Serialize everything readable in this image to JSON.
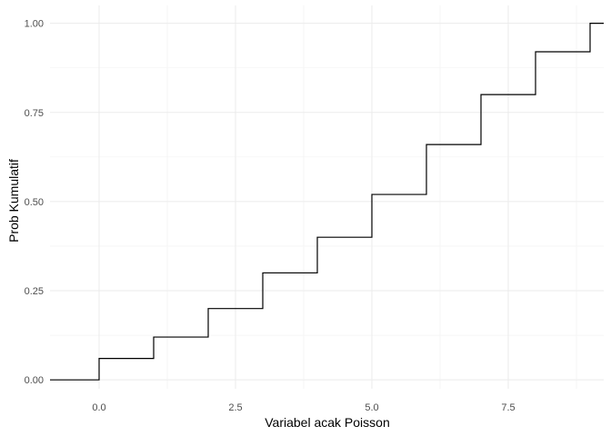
{
  "chart_data": {
    "type": "line",
    "subtype": "step",
    "title": "",
    "xlabel": "Variabel acak Poisson",
    "ylabel": "Prob Kumulatif",
    "xlim": [
      -0.9,
      9.25
    ],
    "ylim": [
      -0.025,
      1.05
    ],
    "x_ticks": [
      0,
      2.5,
      5,
      7.5
    ],
    "x_tick_labels": [
      "0.0",
      "2.5",
      "5.0",
      "7.5"
    ],
    "x_minor_ticks": [
      1.25,
      3.75,
      6.25,
      8.75
    ],
    "y_ticks": [
      0,
      0.25,
      0.5,
      0.75,
      1
    ],
    "y_tick_labels": [
      "0.00",
      "0.25",
      "0.50",
      "0.75",
      "1.00"
    ],
    "y_minor_ticks": [
      0.125,
      0.375,
      0.625,
      0.875
    ],
    "grid": true,
    "legend": "none",
    "line_color": "#000000",
    "series": [
      {
        "x": [
          0,
          1,
          2,
          3,
          4,
          5,
          6,
          7,
          8,
          9
        ],
        "y": [
          0.06,
          0.12,
          0.2,
          0.3,
          0.4,
          0.52,
          0.66,
          0.8,
          0.92,
          1.0
        ]
      }
    ]
  }
}
